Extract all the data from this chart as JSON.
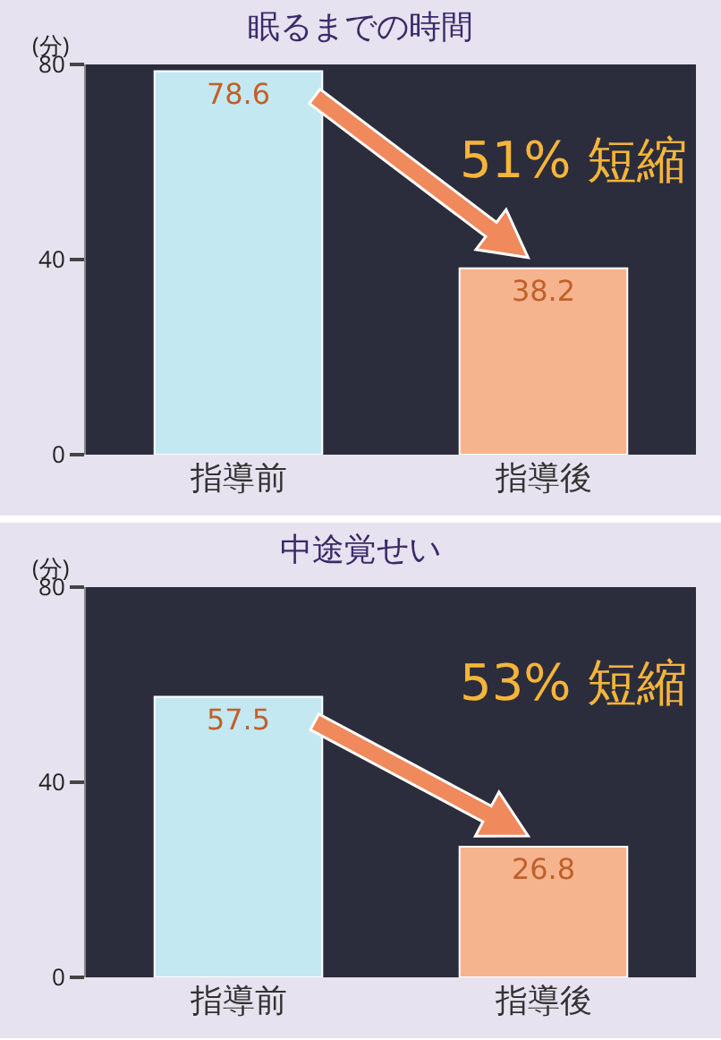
{
  "chart_data": [
    {
      "type": "bar",
      "title": "眠るまでの時間",
      "ylabel": "(分)",
      "categories": [
        "指導前",
        "指導後"
      ],
      "values": [
        78.6,
        38.2
      ],
      "colors": [
        "#c4e8f2",
        "#f6b48e"
      ],
      "ylim": [
        0,
        80
      ],
      "yticks": [
        0,
        40,
        80
      ],
      "grid": false,
      "legend": false,
      "data_labels": true,
      "annotations": [
        "51% 短縮"
      ]
    },
    {
      "type": "bar",
      "title": "中途覚せい",
      "ylabel": "(分)",
      "categories": [
        "指導前",
        "指導後"
      ],
      "values": [
        57.5,
        26.8
      ],
      "colors": [
        "#c4e8f2",
        "#f6b48e"
      ],
      "ylim": [
        0,
        80
      ],
      "yticks": [
        0,
        40,
        80
      ],
      "grid": false,
      "legend": false,
      "data_labels": true,
      "annotations": [
        "53% 短縮"
      ]
    }
  ]
}
